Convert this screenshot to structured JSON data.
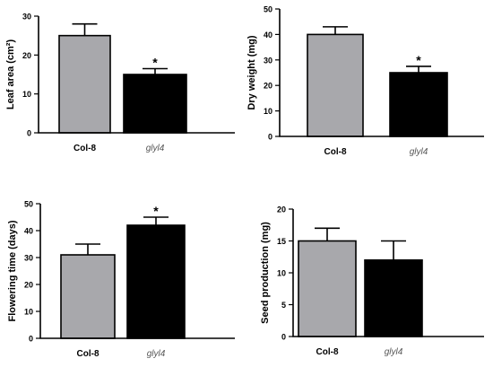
{
  "chart_data": [
    {
      "type": "bar",
      "categories": [
        "Col-8",
        "glyl4"
      ],
      "values": [
        25,
        15
      ],
      "errors": [
        3,
        1.5
      ],
      "significance": [
        "",
        "*"
      ],
      "ylabel": "Leaf area (cm²)",
      "ylim": [
        0,
        30
      ],
      "yticks": [
        0,
        10,
        20,
        30
      ],
      "colors": [
        "#a8a8ac",
        "#000000"
      ]
    },
    {
      "type": "bar",
      "categories": [
        "Col-8",
        "glyl4"
      ],
      "values": [
        40,
        25
      ],
      "errors": [
        3,
        2.5
      ],
      "significance": [
        "",
        "*"
      ],
      "ylabel": "Dry weight (mg)",
      "ylim": [
        0,
        50
      ],
      "yticks": [
        0,
        10,
        20,
        30,
        40,
        50
      ],
      "colors": [
        "#a8a8ac",
        "#000000"
      ]
    },
    {
      "type": "bar",
      "categories": [
        "Col-8",
        "glyl4"
      ],
      "values": [
        31,
        42
      ],
      "errors": [
        4,
        3
      ],
      "significance": [
        "",
        "*"
      ],
      "ylabel": "Flowering time (days)",
      "ylim": [
        0,
        50
      ],
      "yticks": [
        0,
        10,
        20,
        30,
        40,
        50
      ],
      "colors": [
        "#a8a8ac",
        "#000000"
      ]
    },
    {
      "type": "bar",
      "categories": [
        "Col-8",
        "glyl4"
      ],
      "values": [
        15,
        12
      ],
      "errors": [
        2,
        3
      ],
      "significance": [
        "",
        ""
      ],
      "ylabel": "Seed production (mg)",
      "ylim": [
        0,
        20
      ],
      "yticks": [
        0,
        5,
        10,
        15,
        20
      ],
      "colors": [
        "#a8a8ac",
        "#000000"
      ]
    }
  ]
}
